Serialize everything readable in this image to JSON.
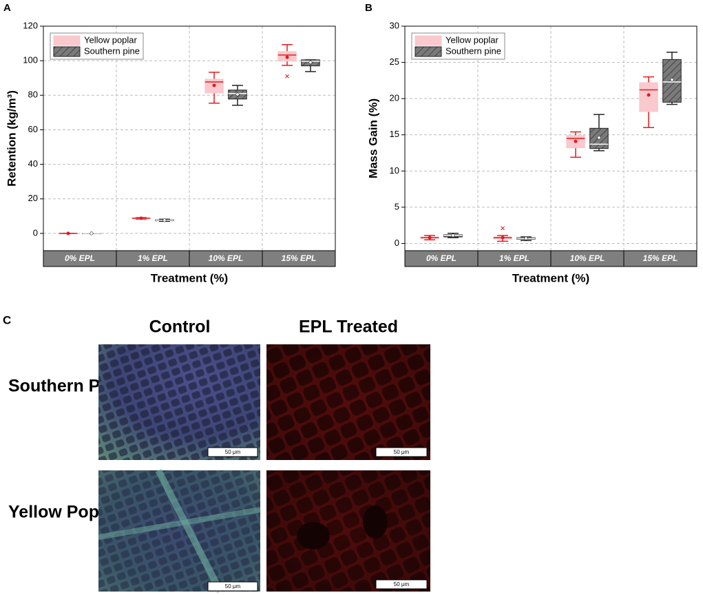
{
  "chart_data": [
    {
      "type": "box",
      "panel": "A",
      "y_label": "Retention (kg/m³)",
      "x_label": "Treatment (%)",
      "categories": [
        "0% EPL",
        "1% EPL",
        "10% EPL",
        "15% EPL"
      ],
      "ylim": [
        -10,
        120
      ],
      "yticks": [
        0,
        20,
        40,
        60,
        80,
        100,
        120
      ],
      "grid": true,
      "legend": "upper left",
      "series": [
        {
          "name": "Yellow poplar",
          "color": "#e31a1c",
          "fill": "#f9c9cd",
          "hatch": false,
          "boxes": [
            {
              "min": 0,
              "q1": 0,
              "median": 0,
              "q3": 0,
              "max": 0,
              "mean": 0,
              "outliers": []
            },
            {
              "min": 8.3,
              "q1": 8.6,
              "median": 8.8,
              "q3": 9,
              "max": 9.2,
              "mean": 8.8,
              "outliers": []
            },
            {
              "min": 75.4,
              "q1": 81.3,
              "median": 87.7,
              "q3": 89.3,
              "max": 93.3,
              "mean": 85.7,
              "outliers": []
            },
            {
              "min": 97.3,
              "q1": 99.7,
              "median": 103.3,
              "q3": 105.3,
              "max": 109.3,
              "mean": 102,
              "outliers": [
                91
              ]
            }
          ]
        },
        {
          "name": "Southern pine",
          "color": "#222222",
          "fill": "#7a7a7a",
          "hatch": true,
          "boxes": [
            {
              "min": 0,
              "q1": 0,
              "median": 0,
              "q3": 0,
              "max": 0,
              "mean": 0,
              "outliers": []
            },
            {
              "min": 7,
              "q1": 7.3,
              "median": 7.6,
              "q3": 7.9,
              "max": 8.2,
              "mean": 7.6,
              "outliers": []
            },
            {
              "min": 74.2,
              "q1": 77.8,
              "median": 81,
              "q3": 83,
              "max": 85.7,
              "mean": 80.5,
              "outliers": []
            },
            {
              "min": 93.7,
              "q1": 97,
              "median": 99.7,
              "q3": 100.5,
              "max": 100.5,
              "mean": 99,
              "outliers": []
            }
          ]
        }
      ]
    },
    {
      "type": "box",
      "panel": "B",
      "y_label": "Mass Gain (%)",
      "x_label": "Treatment (%)",
      "categories": [
        "0% EPL",
        "1% EPL",
        "10% EPL",
        "15% EPL"
      ],
      "ylim": [
        -1,
        30
      ],
      "yticks": [
        0,
        5,
        10,
        15,
        20,
        25,
        30
      ],
      "grid": true,
      "legend": "upper left",
      "series": [
        {
          "name": "Yellow poplar",
          "color": "#e31a1c",
          "fill": "#f9c9cd",
          "hatch": false,
          "boxes": [
            {
              "min": 0.5,
              "q1": 0.7,
              "median": 0.8,
              "q3": 0.9,
              "max": 1.1,
              "mean": 0.8,
              "outliers": []
            },
            {
              "min": 0.3,
              "q1": 0.6,
              "median": 0.8,
              "q3": 0.9,
              "max": 1.1,
              "mean": 0.8,
              "outliers": [
                2.1
              ]
            },
            {
              "min": 11.9,
              "q1": 13.2,
              "median": 14.5,
              "q3": 14.9,
              "max": 15.4,
              "mean": 14.1,
              "outliers": []
            },
            {
              "min": 16,
              "q1": 18.2,
              "median": 21.2,
              "q3": 22.2,
              "max": 23,
              "mean": 20.5,
              "outliers": []
            }
          ]
        },
        {
          "name": "Southern pine",
          "color": "#222222",
          "fill": "#7a7a7a",
          "hatch": true,
          "boxes": [
            {
              "min": 0.8,
              "q1": 0.9,
              "median": 1.1,
              "q3": 1.2,
              "max": 1.4,
              "mean": 1.1,
              "outliers": []
            },
            {
              "min": 0.4,
              "q1": 0.6,
              "median": 0.7,
              "q3": 0.8,
              "max": 0.9,
              "mean": 0.7,
              "outliers": []
            },
            {
              "min": 12.8,
              "q1": 13.1,
              "median": 13.7,
              "q3": 15.9,
              "max": 17.8,
              "mean": 14.6,
              "outliers": []
            },
            {
              "min": 19.2,
              "q1": 19.5,
              "median": 22.3,
              "q3": 25.4,
              "max": 26.4,
              "mean": 22.6,
              "outliers": []
            }
          ]
        }
      ]
    }
  ],
  "panel_c": {
    "label": "C",
    "columns": [
      "Control",
      "EPL Treated"
    ],
    "rows": [
      "Southern Pine",
      "Yellow Poplar"
    ],
    "scale_bar": "50 μm"
  }
}
